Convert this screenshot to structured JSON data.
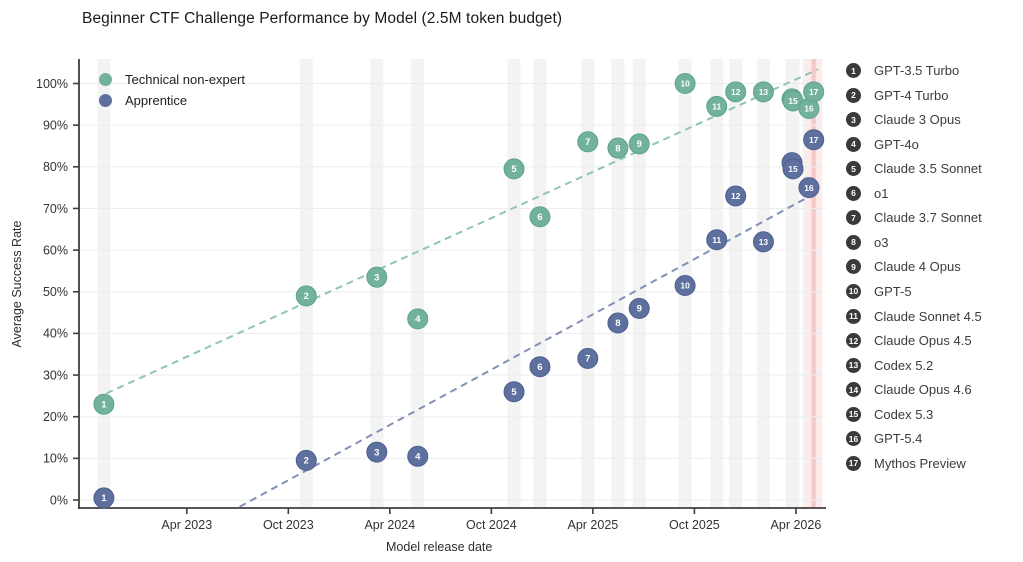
{
  "title": "Beginner CTF Challenge Performance by Model (2.5M token budget)",
  "axes": {
    "x_label": "Model release date",
    "y_label": "Average Success Rate",
    "y_ticks": [
      "0%",
      "10%",
      "20%",
      "30%",
      "40%",
      "50%",
      "60%",
      "70%",
      "80%",
      "90%",
      "100%"
    ],
    "x_ticks": [
      {
        "label": "Apr 2023",
        "m": 0
      },
      {
        "label": "Oct 2023",
        "m": 6
      },
      {
        "label": "Apr 2024",
        "m": 12
      },
      {
        "label": "Oct 2024",
        "m": 18
      },
      {
        "label": "Apr 2025",
        "m": 24
      },
      {
        "label": "Oct 2025",
        "m": 30
      },
      {
        "label": "Apr 2026",
        "m": 36
      }
    ]
  },
  "legend": [
    {
      "label": "Technical non-expert",
      "series": "nonexpert"
    },
    {
      "label": "Apprentice",
      "series": "apprentice"
    }
  ],
  "colors": {
    "nonexpert": "#72b19c",
    "nonexpert_edge": "#5da48c",
    "nonexpert_trend": "#8ec6b2",
    "apprentice": "#5e709d",
    "apprentice_edge": "#4d5f8e",
    "apprentice_trend": "#8191b6",
    "badge": "#3a3a3a",
    "band": "#f3f3f3",
    "highlight_band": "#fcebea",
    "highlight_core": "#f5c9c7",
    "grid": "#ededed",
    "spine": "#3f3f3f",
    "tick_text": "#333333"
  },
  "chart_data": {
    "type": "scatter",
    "title": "Beginner CTF Challenge Performance by Model (2.5M token budget)",
    "xlabel": "Model release date",
    "ylabel": "Average Success Rate",
    "x_unit": "months after Apr 2023",
    "y_unit": "percent",
    "ylim": [
      0,
      100
    ],
    "grid": true,
    "legend_position": "upper left",
    "series_names": [
      "Technical non-expert",
      "Apprentice"
    ],
    "models": [
      {
        "num": 1,
        "name": "GPT-3.5 Turbo",
        "release": "Nov 2022",
        "x_m": -4.9,
        "nonexpert": 23.0,
        "apprentice": 0.5,
        "highlight": false
      },
      {
        "num": 2,
        "name": "GPT-4 Turbo",
        "release": "Nov 2023",
        "x_m": 7.06,
        "nonexpert": 49.0,
        "apprentice": 9.5,
        "highlight": false
      },
      {
        "num": 3,
        "name": "Claude 3 Opus",
        "release": "Mar 2024",
        "x_m": 11.23,
        "nonexpert": 53.5,
        "apprentice": 11.5,
        "highlight": false
      },
      {
        "num": 4,
        "name": "GPT-4o",
        "release": "May 2024",
        "x_m": 13.65,
        "nonexpert": 43.5,
        "apprentice": 10.5,
        "highlight": false
      },
      {
        "num": 5,
        "name": "Claude 3.5 Sonnet",
        "release": "Nov 2024",
        "x_m": 19.34,
        "nonexpert": 79.5,
        "apprentice": 26.0,
        "highlight": false
      },
      {
        "num": 6,
        "name": "o1",
        "release": "Dec 2024",
        "x_m": 20.87,
        "nonexpert": 68.0,
        "apprentice": 32.0,
        "highlight": false
      },
      {
        "num": 7,
        "name": "Claude 3.7 Sonnet",
        "release": "Mar 2025",
        "x_m": 23.7,
        "nonexpert": 86.0,
        "apprentice": 34.0,
        "highlight": false
      },
      {
        "num": 8,
        "name": "o3",
        "release": "May 2025",
        "x_m": 25.48,
        "nonexpert": 84.5,
        "apprentice": 42.5,
        "highlight": false
      },
      {
        "num": 9,
        "name": "Claude 4 Opus",
        "release": "Jun 2025",
        "x_m": 26.74,
        "nonexpert": 85.5,
        "apprentice": 46.0,
        "highlight": false
      },
      {
        "num": 10,
        "name": "GPT-5",
        "release": "Sep 2025",
        "x_m": 29.45,
        "nonexpert": 100.0,
        "apprentice": 51.5,
        "highlight": false
      },
      {
        "num": 11,
        "name": "Claude Sonnet 4.5",
        "release": "Nov 2025",
        "x_m": 31.32,
        "nonexpert": 94.5,
        "apprentice": 62.5,
        "highlight": false
      },
      {
        "num": 12,
        "name": "Claude Opus 4.5",
        "release": "Dec 2025",
        "x_m": 32.44,
        "nonexpert": 98.0,
        "apprentice": 73.0,
        "highlight": false
      },
      {
        "num": 13,
        "name": "Codex 5.2",
        "release": "Feb 2026",
        "x_m": 34.08,
        "nonexpert": 98.0,
        "apprentice": 62.0,
        "highlight": false
      },
      {
        "num": 14,
        "name": "Claude Opus 4.6",
        "release": "Mar 2026",
        "x_m": 35.77,
        "nonexpert": 96.3,
        "apprentice": 81.0,
        "highlight": false
      },
      {
        "num": 15,
        "name": "Codex 5.3",
        "release": "Mar 2026",
        "x_m": 35.83,
        "nonexpert": 95.8,
        "apprentice": 79.5,
        "highlight": false
      },
      {
        "num": 16,
        "name": "GPT-5.4",
        "release": "Apr 2026",
        "x_m": 36.77,
        "nonexpert": 94.0,
        "apprentice": 75.0,
        "highlight": false
      },
      {
        "num": 17,
        "name": "Mythos Preview",
        "release": "Apr 2026",
        "x_m": 37.05,
        "nonexpert": 98.0,
        "apprentice": 86.5,
        "highlight": true
      }
    ],
    "trendlines": [
      {
        "series": "nonexpert",
        "points_m_pct": [
          [
            -5.4,
            24.4
          ],
          [
            37.3,
            103.4
          ]
        ]
      },
      {
        "series": "apprentice",
        "points_m_pct": [
          [
            2.5,
            -3.0
          ],
          [
            37.3,
            74.0
          ]
        ]
      }
    ]
  }
}
